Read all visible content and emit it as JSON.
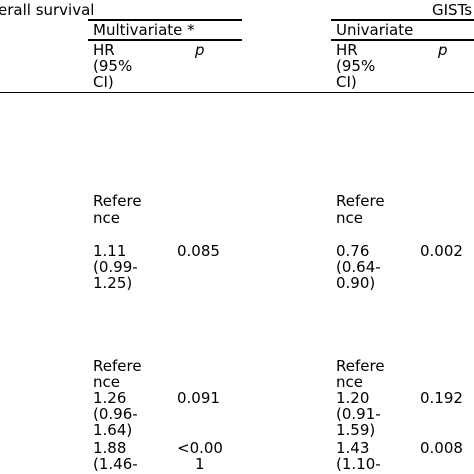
{
  "header": {
    "left_group": "erall survival",
    "right_group": "GISTs",
    "multivariate": "Multivariate *",
    "univariate": "Univariate",
    "hr_line1": "HR",
    "hr_line2": "(95%",
    "hr_line3": "CI)",
    "p_label": "p"
  },
  "rows": {
    "r1": {
      "mv_hr": [
        "Refere",
        "nce"
      ],
      "uv_hr": [
        "Refere",
        "nce"
      ]
    },
    "r2": {
      "mv_hr": [
        "1.11",
        "(0.99-",
        "1.25)"
      ],
      "mv_p": "0.085",
      "uv_hr": [
        "0.76",
        "(0.64-",
        "0.90)"
      ],
      "uv_p": "0.002"
    },
    "r3": {
      "mv_hr": [
        "Refere",
        "nce"
      ],
      "uv_hr": [
        "Refere",
        "nce"
      ]
    },
    "r4": {
      "mv_hr": [
        "1.26",
        "(0.96-",
        "1.64)"
      ],
      "mv_p": "0.091",
      "uv_hr": [
        "1.20",
        "(0.91-",
        "1.59)"
      ],
      "uv_p": "0.192"
    },
    "r5": {
      "mv_hr": [
        "1.88",
        "(1.46-"
      ],
      "mv_p": [
        "<0.00",
        "1"
      ],
      "uv_hr": [
        "1.43",
        "(1.10-"
      ],
      "uv_p": "0.008"
    }
  }
}
